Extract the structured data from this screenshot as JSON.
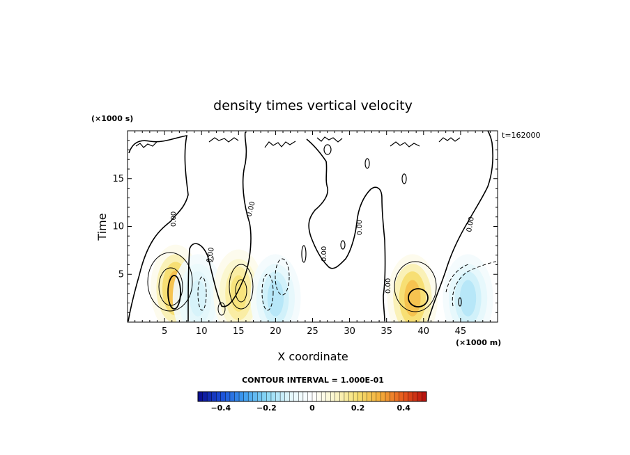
{
  "chart_data": {
    "type": "heatmap",
    "title": "density times vertical velocity",
    "xlabel": "X coordinate",
    "ylabel": "Time",
    "x_unit": "(×1000 m)",
    "y_unit": "(×1000 s)",
    "time_label": "t=162000",
    "xlim": [
      0,
      50
    ],
    "ylim": [
      0,
      20
    ],
    "x_ticks": [
      5,
      10,
      15,
      20,
      25,
      30,
      35,
      40,
      45
    ],
    "y_ticks": [
      5,
      10,
      15
    ],
    "contour_interval_text": "CONTOUR INTERVAL = 1.000E-01",
    "colorbar": {
      "min": -0.5,
      "max": 0.5,
      "ticks": [
        -0.4,
        -0.2,
        0,
        0.2,
        0.4
      ],
      "tick_labels": [
        "−0.4",
        "−0.2",
        "0",
        "0.2",
        "0.4"
      ],
      "colors_low_to_high": [
        "#0a0a8c",
        "#1a4cd6",
        "#3c9cf0",
        "#8ad8f4",
        "#e2f6fb",
        "#ffffff",
        "#fbf6cc",
        "#f6e070",
        "#f4ae3a",
        "#e8581c",
        "#b40e0e"
      ]
    },
    "zero_contour_label": "0.00",
    "features": [
      {
        "x": 6.5,
        "y": 3.5,
        "value": 0.3
      },
      {
        "x": 9.5,
        "y": 2.5,
        "value": -0.1
      },
      {
        "x": 15.0,
        "y": 3.0,
        "value": 0.2
      },
      {
        "x": 20.0,
        "y": 2.5,
        "value": -0.15
      },
      {
        "x": 38.5,
        "y": 2.5,
        "value": 0.3
      },
      {
        "x": 46.0,
        "y": 2.5,
        "value": -0.15
      }
    ]
  }
}
